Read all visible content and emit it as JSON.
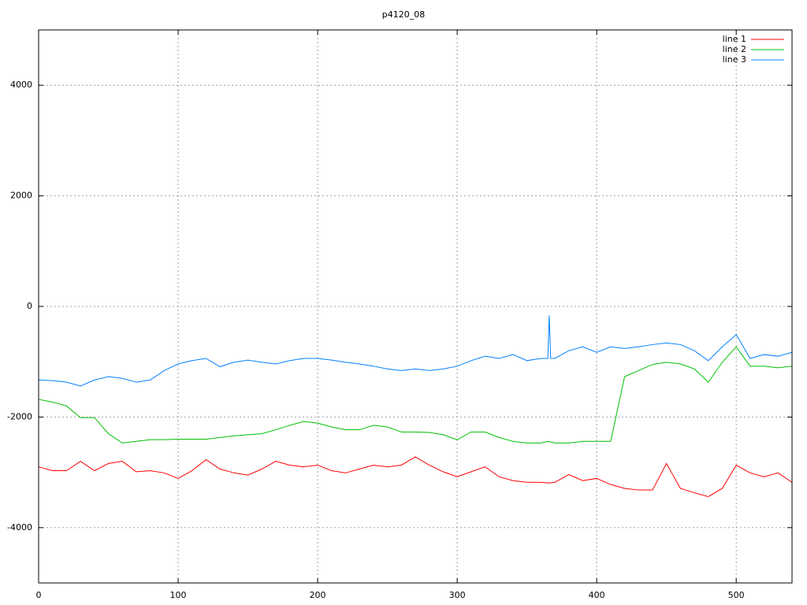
{
  "chart_data": {
    "type": "line",
    "title": "p4120_08",
    "x": [
      0,
      10,
      20,
      30,
      40,
      50,
      60,
      70,
      80,
      90,
      100,
      110,
      120,
      130,
      140,
      150,
      160,
      170,
      180,
      190,
      200,
      210,
      220,
      230,
      240,
      250,
      260,
      270,
      280,
      290,
      300,
      310,
      320,
      330,
      340,
      350,
      360,
      365,
      366,
      367,
      370,
      380,
      390,
      400,
      410,
      420,
      430,
      440,
      450,
      460,
      470,
      480,
      490,
      500,
      510,
      520,
      530,
      540
    ],
    "series": [
      {
        "name": "line 1",
        "color": "#ff0000",
        "values": [
          -2900,
          -2970,
          -2970,
          -2800,
          -2970,
          -2840,
          -2800,
          -2990,
          -2970,
          -3010,
          -3110,
          -2970,
          -2770,
          -2940,
          -3010,
          -3050,
          -2940,
          -2800,
          -2870,
          -2900,
          -2870,
          -2970,
          -3010,
          -2940,
          -2870,
          -2900,
          -2870,
          -2720,
          -2870,
          -2990,
          -3080,
          -2990,
          -2900,
          -3080,
          -3150,
          -3180,
          -3180,
          -3190,
          -3190,
          -3190,
          -3180,
          -3040,
          -3150,
          -3110,
          -3220,
          -3290,
          -3320,
          -3320,
          -2840,
          -3290,
          -3370,
          -3440,
          -3290,
          -2870,
          -3010,
          -3080,
          -3010,
          -3180
        ]
      },
      {
        "name": "line 2",
        "color": "#00c000",
        "values": [
          -1680,
          -1730,
          -1800,
          -2010,
          -2010,
          -2300,
          -2470,
          -2440,
          -2410,
          -2410,
          -2400,
          -2400,
          -2400,
          -2370,
          -2340,
          -2320,
          -2300,
          -2230,
          -2150,
          -2080,
          -2110,
          -2180,
          -2230,
          -2230,
          -2150,
          -2180,
          -2270,
          -2270,
          -2280,
          -2320,
          -2410,
          -2270,
          -2270,
          -2370,
          -2440,
          -2470,
          -2470,
          -2440,
          -2440,
          -2450,
          -2470,
          -2470,
          -2440,
          -2440,
          -2440,
          -1270,
          -1160,
          -1050,
          -1010,
          -1040,
          -1130,
          -1370,
          -1010,
          -730,
          -1080,
          -1080,
          -1110,
          -1080
        ]
      },
      {
        "name": "line 3",
        "color": "#0080ff",
        "values": [
          -1330,
          -1340,
          -1370,
          -1440,
          -1330,
          -1270,
          -1300,
          -1370,
          -1330,
          -1160,
          -1040,
          -980,
          -940,
          -1090,
          -1010,
          -970,
          -1010,
          -1040,
          -980,
          -940,
          -940,
          -970,
          -1010,
          -1040,
          -1080,
          -1130,
          -1160,
          -1130,
          -1160,
          -1130,
          -1080,
          -980,
          -900,
          -940,
          -870,
          -980,
          -940,
          -940,
          -160,
          -940,
          -940,
          -800,
          -730,
          -830,
          -730,
          -760,
          -730,
          -690,
          -660,
          -690,
          -800,
          -980,
          -730,
          -510,
          -940,
          -870,
          -900,
          -830
        ]
      }
    ],
    "xlim": [
      0,
      540
    ],
    "xticks": [
      0,
      100,
      200,
      300,
      400,
      500
    ],
    "ylim": [
      -5000,
      5000
    ],
    "yticks": [
      -4000,
      -2000,
      0,
      2000,
      4000
    ],
    "grid": true,
    "legend": "top-right"
  }
}
